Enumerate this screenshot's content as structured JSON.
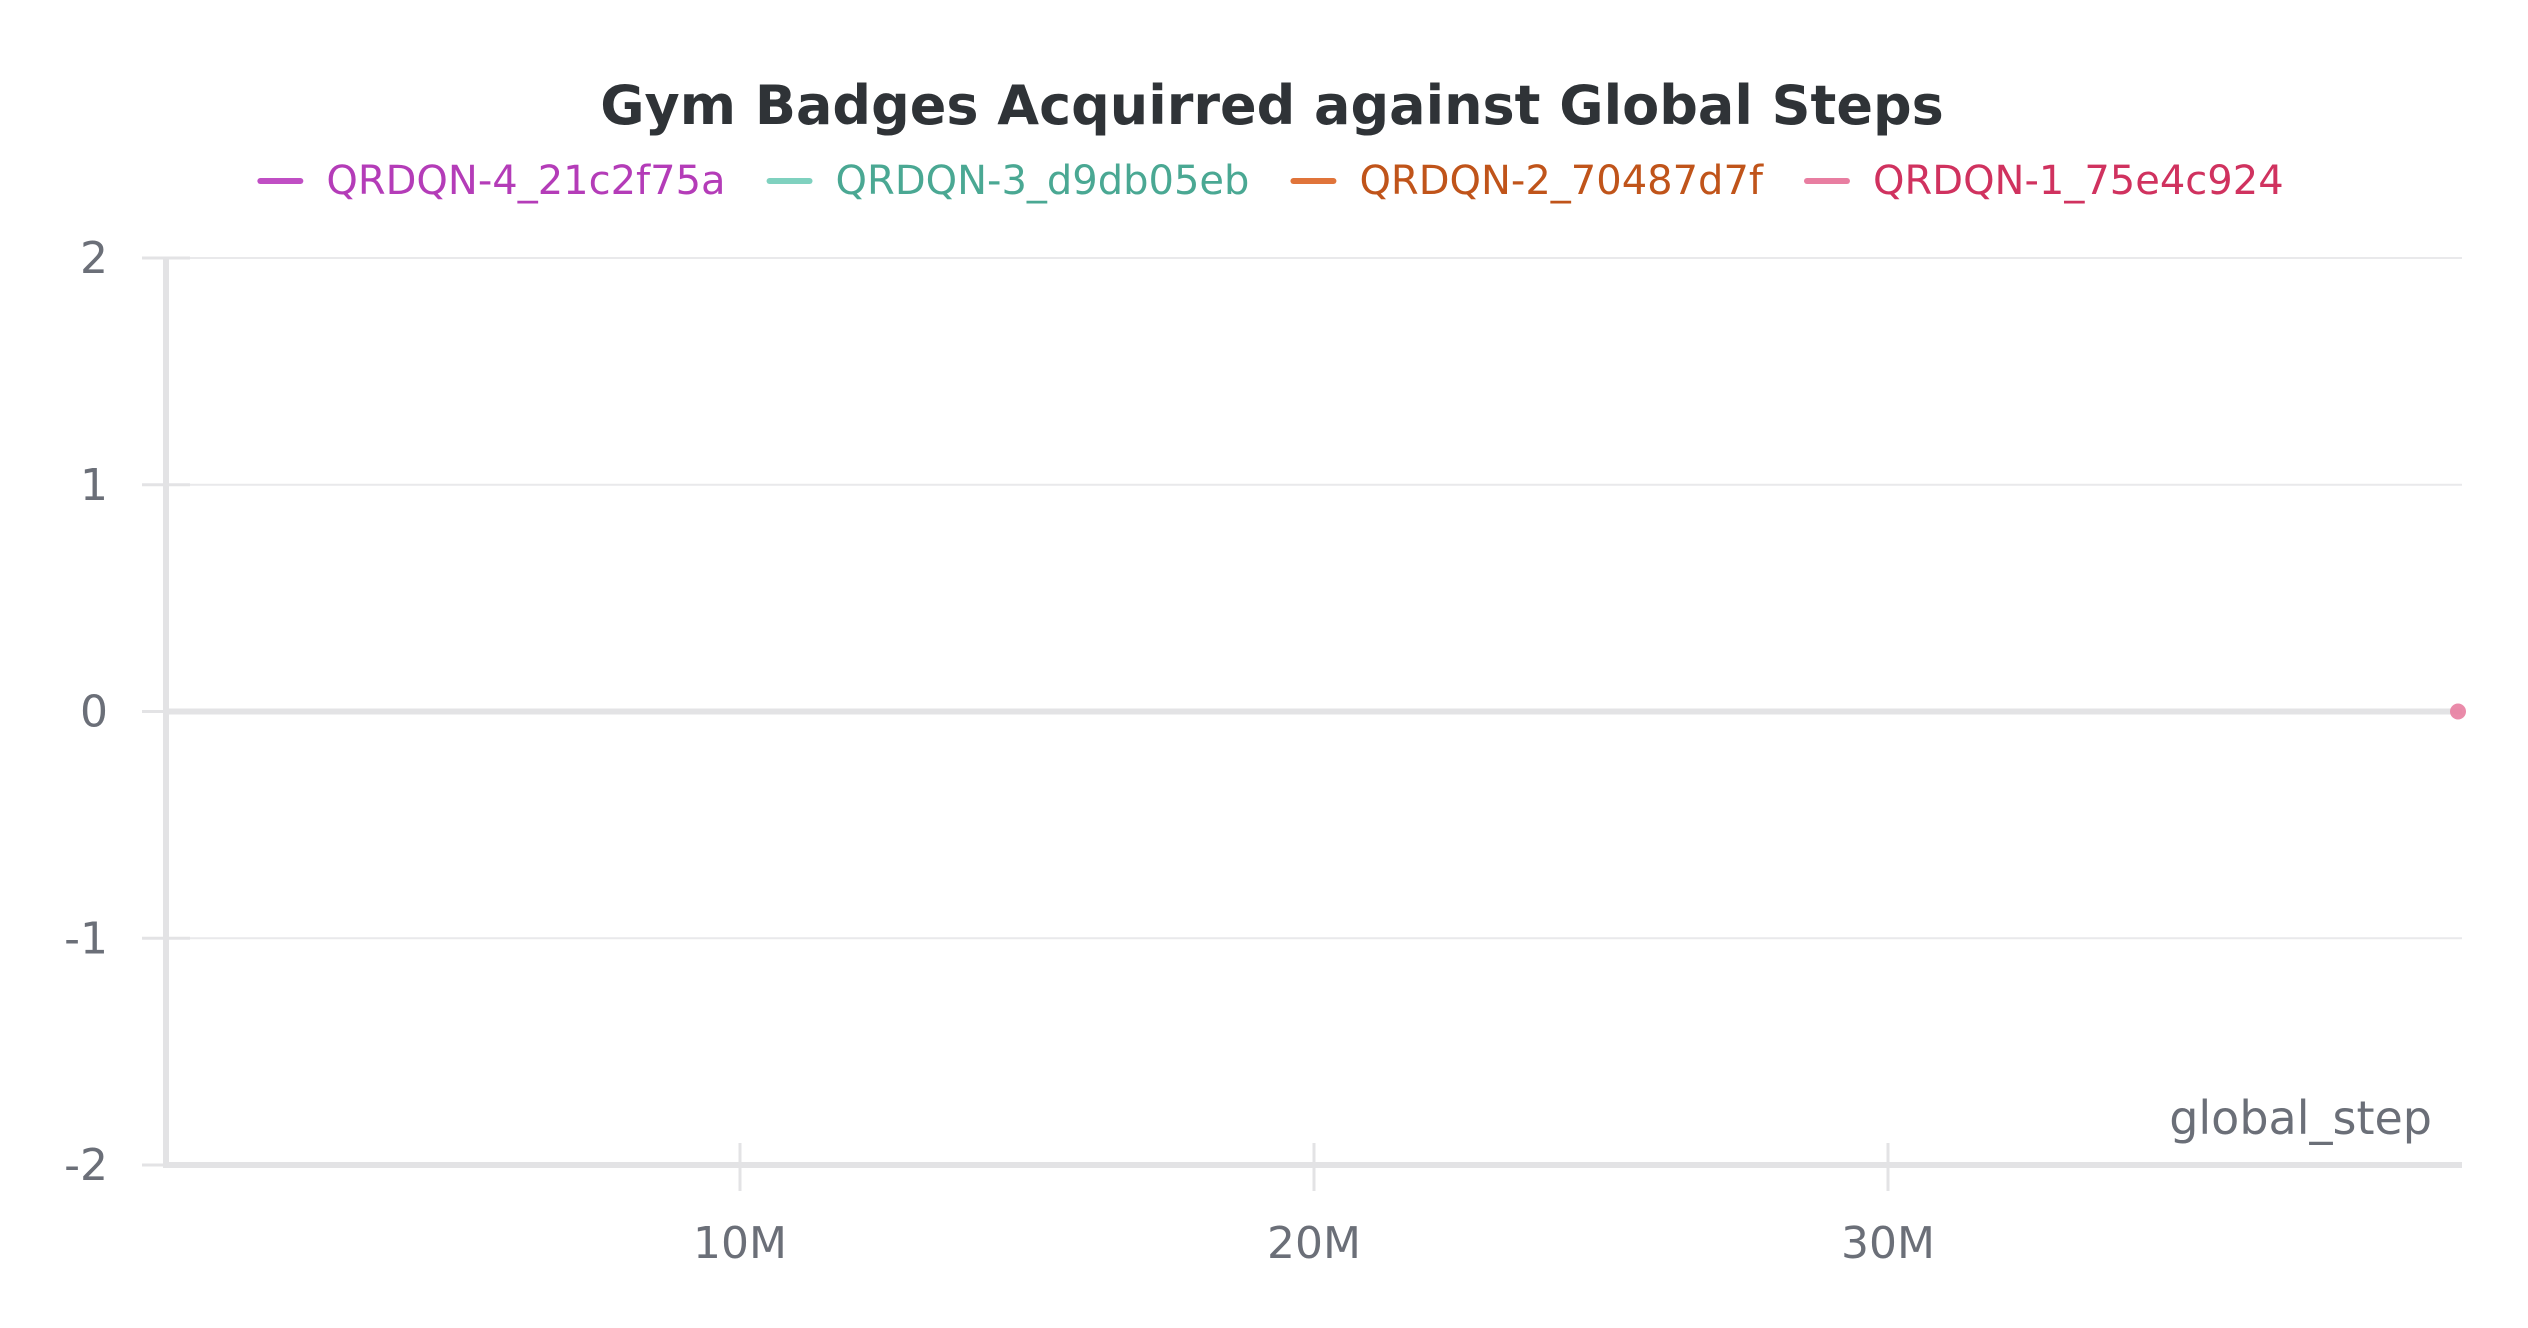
{
  "chart_data": {
    "type": "line",
    "title": "Gym Badges Acquirred against Global Steps",
    "xlabel": "global_step",
    "ylabel": "",
    "xlim": [
      0,
      40000000
    ],
    "ylim": [
      -2,
      2
    ],
    "x_ticks": [
      {
        "value": 10000000,
        "label": "10M"
      },
      {
        "value": 20000000,
        "label": "20M"
      },
      {
        "value": 30000000,
        "label": "30M"
      }
    ],
    "y_ticks": [
      {
        "value": 2,
        "label": "2"
      },
      {
        "value": 1,
        "label": "1"
      },
      {
        "value": 0,
        "label": "0"
      },
      {
        "value": -1,
        "label": "-1"
      },
      {
        "value": -2,
        "label": "-2"
      }
    ],
    "grid": true,
    "legend_position": "top",
    "series": [
      {
        "name": "QRDQN-4_21c2f75a",
        "color": "#c04fc4",
        "text_color": "#b43cb8",
        "x": [
          0,
          40000000
        ],
        "values": [
          0,
          0
        ]
      },
      {
        "name": "QRDQN-3_d9db05eb",
        "color": "#7fd1bf",
        "text_color": "#4aa893",
        "x": [
          0,
          40000000
        ],
        "values": [
          0,
          0
        ]
      },
      {
        "name": "QRDQN-2_70487d7f",
        "color": "#e0743a",
        "text_color": "#c0541a",
        "x": [
          0,
          40000000
        ],
        "values": [
          0,
          0
        ]
      },
      {
        "name": "QRDQN-1_75e4c924",
        "color": "#e87ea1",
        "text_color": "#d0325f",
        "x": [
          0,
          40000000
        ],
        "values": [
          0,
          0
        ]
      }
    ]
  }
}
